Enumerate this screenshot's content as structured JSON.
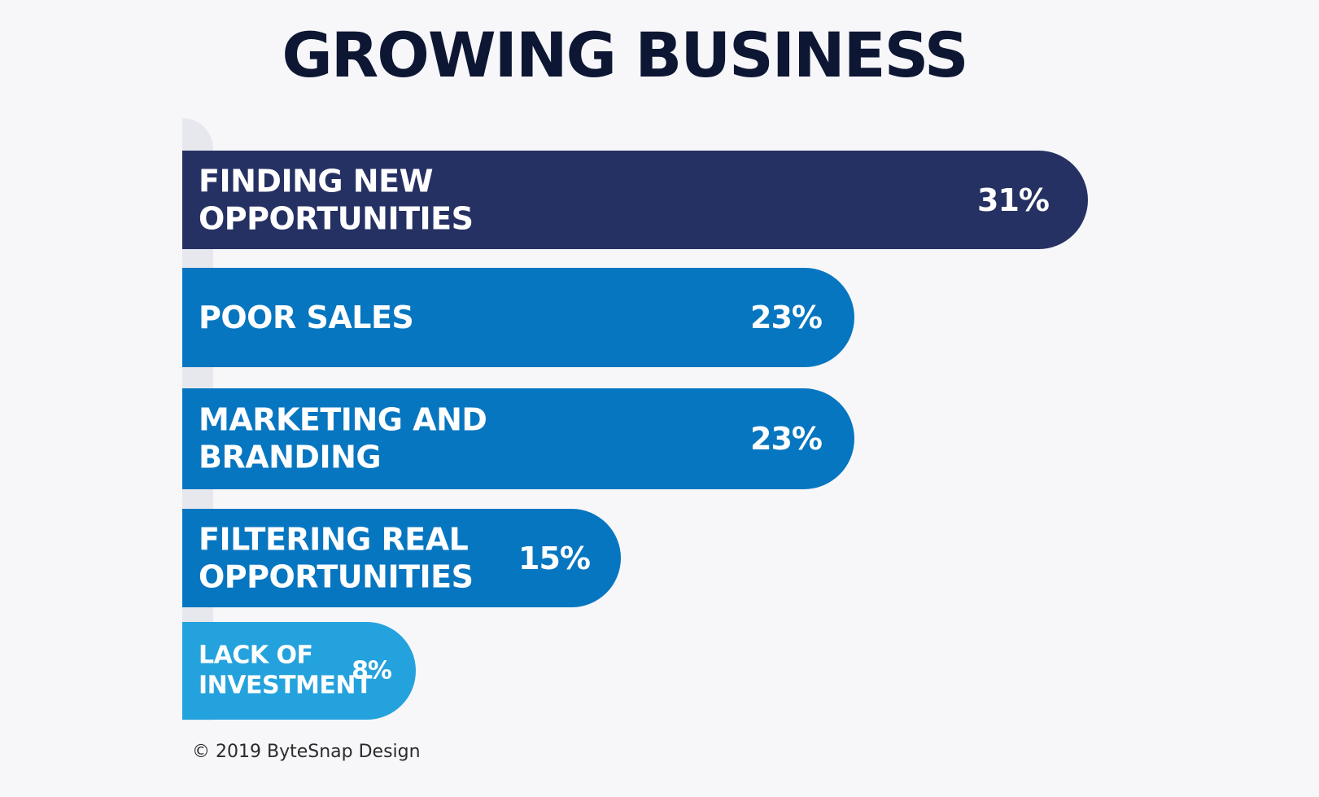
{
  "chart_data": {
    "type": "bar",
    "orientation": "horizontal",
    "title": "GROWING BUSINESS",
    "categories": [
      "FINDING NEW\nOPPORTUNITIES",
      "POOR SALES",
      "MARKETING AND\nBRANDING",
      "FILTERING REAL\nOPPORTUNITIES",
      "LACK OF\nINVESTMENT"
    ],
    "values": [
      31,
      23,
      23,
      15,
      8
    ],
    "value_labels": [
      "31%",
      "23%",
      "23%",
      "15%",
      "8%"
    ],
    "unit": "%",
    "colors": [
      "#263163",
      "#0776c0",
      "#0776c0",
      "#0776c0",
      "#24a2dd"
    ],
    "grid": false,
    "legend": "none"
  },
  "footer": {
    "credit": "© 2019 ByteSnap Design"
  }
}
